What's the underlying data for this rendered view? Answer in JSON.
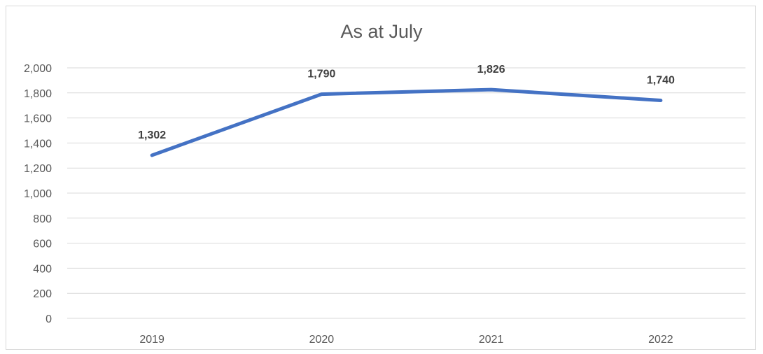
{
  "chart_data": {
    "type": "line",
    "title": "As at July",
    "categories": [
      "2019",
      "2020",
      "2021",
      "2022"
    ],
    "series": [
      {
        "values": [
          1302,
          1790,
          1826,
          1740
        ],
        "color": "#4472c4"
      }
    ],
    "data_labels": [
      "1,302",
      "1,790",
      "1,826",
      "1,740"
    ],
    "y_ticks": [
      0,
      200,
      400,
      600,
      800,
      1000,
      1200,
      1400,
      1600,
      1800,
      2000
    ],
    "y_tick_labels": [
      "0",
      "200",
      "400",
      "600",
      "800",
      "1,000",
      "1,200",
      "1,400",
      "1,600",
      "1,800",
      "2,000"
    ],
    "ylim": [
      0,
      2000
    ],
    "grid": true,
    "legend": "none"
  }
}
